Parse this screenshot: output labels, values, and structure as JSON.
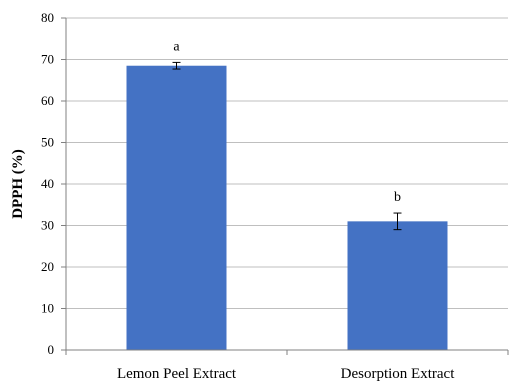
{
  "chart_data": {
    "type": "bar",
    "title": "",
    "xlabel": "",
    "ylabel": "DPPH (%)",
    "ylim": [
      0,
      80
    ],
    "yticks": [
      0,
      10,
      20,
      30,
      40,
      50,
      60,
      70,
      80
    ],
    "grid": true,
    "categories": [
      "Lemon Peel Extract",
      "Desorption Extract"
    ],
    "values": [
      68.5,
      31.0
    ],
    "errors": [
      0.8,
      2.0
    ],
    "annotations": [
      "a",
      "b"
    ],
    "bar_color": "#4472C4",
    "gridline_color": "#bfbfbf"
  }
}
